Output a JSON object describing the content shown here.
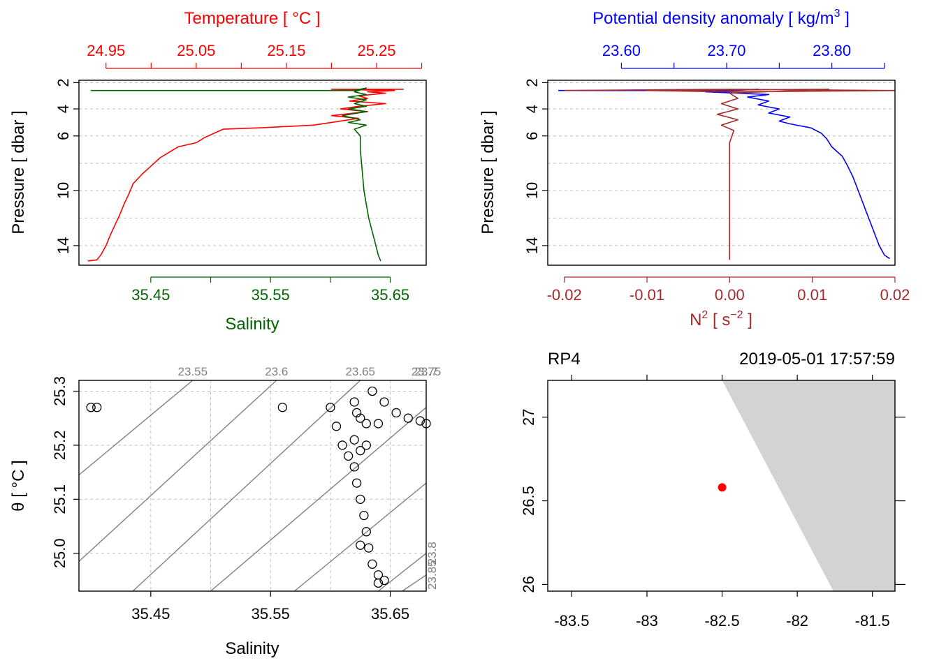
{
  "colors": {
    "temperature": "#ff0000",
    "salinity": "#006400",
    "density": "#0000ff",
    "n2": "#a52a2a",
    "axis": "#000000",
    "grid": "#bfbfbf",
    "isopycnal": "#808080",
    "land": "#d3d3d3",
    "station": "#ff0000"
  },
  "chart_data": [
    {
      "id": "ts-profile",
      "type": "line",
      "title": "",
      "top_axis": {
        "label": "Temperature [ °C ]",
        "range": [
          24.92,
          25.305
        ],
        "ticks": [
          24.95,
          25.0,
          25.05,
          25.1,
          25.15,
          25.2,
          25.25,
          25.3
        ],
        "tick_labels": [
          "24.95",
          "",
          "25.05",
          "",
          "25.15",
          "",
          "25.25",
          ""
        ]
      },
      "bottom_axis": {
        "label": "Salinity",
        "range": [
          35.39,
          35.68
        ],
        "ticks": [
          35.45,
          35.5,
          35.55,
          35.6,
          35.65
        ],
        "tick_labels": [
          "35.45",
          "",
          "35.55",
          "",
          "35.65"
        ]
      },
      "ylabel": "Pressure [ dbar ]",
      "ylim": [
        2,
        15.5
      ],
      "y_reversed": true,
      "y_ticks": [
        2,
        4,
        6,
        10,
        14
      ],
      "y_grid": [
        2,
        4,
        6,
        8,
        10,
        12,
        14
      ],
      "series": [
        {
          "name": "Temperature",
          "axis": "top",
          "points": [
            [
              25.28,
              2.5
            ],
            [
              25.2,
              2.5
            ],
            [
              25.27,
              2.6
            ],
            [
              25.24,
              2.7
            ],
            [
              25.26,
              2.8
            ],
            [
              25.23,
              3.0
            ],
            [
              25.24,
              3.2
            ],
            [
              25.22,
              3.4
            ],
            [
              25.26,
              3.6
            ],
            [
              25.23,
              3.8
            ],
            [
              25.21,
              4.0
            ],
            [
              25.24,
              4.2
            ],
            [
              25.2,
              4.5
            ],
            [
              25.23,
              4.7
            ],
            [
              25.2,
              5.0
            ],
            [
              25.18,
              5.2
            ],
            [
              25.12,
              5.4
            ],
            [
              25.08,
              5.5
            ],
            [
              25.07,
              5.8
            ],
            [
              25.06,
              6.1
            ],
            [
              25.05,
              6.5
            ],
            [
              25.03,
              6.8
            ],
            [
              25.02,
              7.2
            ],
            [
              25.01,
              7.6
            ],
            [
              25.0,
              8.2
            ],
            [
              24.99,
              8.8
            ],
            [
              24.98,
              9.5
            ],
            [
              24.975,
              10.3
            ],
            [
              24.97,
              11.0
            ],
            [
              24.965,
              11.8
            ],
            [
              24.96,
              12.5
            ],
            [
              24.955,
              13.2
            ],
            [
              24.95,
              14.0
            ],
            [
              24.945,
              14.7
            ],
            [
              24.94,
              15.2
            ],
            [
              24.93,
              15.3
            ]
          ]
        },
        {
          "name": "Salinity",
          "axis": "bottom",
          "points": [
            [
              35.4,
              2.6
            ],
            [
              35.62,
              2.6
            ],
            [
              35.63,
              2.4
            ],
            [
              35.62,
              2.7
            ],
            [
              35.63,
              2.9
            ],
            [
              35.615,
              3.1
            ],
            [
              35.63,
              3.3
            ],
            [
              35.62,
              3.6
            ],
            [
              35.63,
              3.8
            ],
            [
              35.615,
              4.0
            ],
            [
              35.63,
              4.2
            ],
            [
              35.61,
              4.5
            ],
            [
              35.625,
              4.8
            ],
            [
              35.615,
              5.0
            ],
            [
              35.63,
              5.2
            ],
            [
              35.62,
              5.5
            ],
            [
              35.625,
              6.0
            ],
            [
              35.625,
              7.0
            ],
            [
              35.626,
              8.0
            ],
            [
              35.627,
              9.0
            ],
            [
              35.628,
              10.0
            ],
            [
              35.63,
              11.0
            ],
            [
              35.632,
              12.0
            ],
            [
              35.635,
              13.0
            ],
            [
              35.638,
              14.0
            ],
            [
              35.64,
              14.8
            ],
            [
              35.642,
              15.3
            ]
          ]
        }
      ]
    },
    {
      "id": "density-profile",
      "type": "line",
      "title": "",
      "top_axis": {
        "label": "Potential density anomaly [ kg/m",
        "label_sup": "3",
        "label_tail": " ]",
        "range": [
          23.53,
          23.86
        ],
        "ticks": [
          23.6,
          23.65,
          23.7,
          23.75,
          23.8,
          23.85
        ],
        "tick_labels": [
          "23.60",
          "",
          "23.70",
          "",
          "23.80",
          ""
        ]
      },
      "bottom_axis": {
        "label": "N",
        "label_sup": "2",
        "label_tail": " [ s",
        "label_sup2": "−2",
        "label_tail2": " ]",
        "range": [
          -0.022,
          0.02
        ],
        "ticks": [
          -0.02,
          -0.01,
          0.0,
          0.01,
          0.02
        ],
        "tick_labels": [
          "-0.02",
          "-0.01",
          "0.00",
          "0.01",
          "0.02"
        ]
      },
      "ylabel": "Pressure [ dbar ]",
      "ylim": [
        2,
        15.5
      ],
      "y_reversed": true,
      "y_ticks": [
        2,
        4,
        6,
        10,
        14
      ],
      "y_grid": [
        2,
        4,
        6,
        8,
        10,
        12,
        14
      ],
      "series": [
        {
          "name": "Potential density anomaly",
          "axis": "top",
          "points": [
            [
              23.54,
              2.6
            ],
            [
              23.7,
              2.6
            ],
            [
              23.73,
              2.5
            ],
            [
              23.68,
              2.7
            ],
            [
              23.74,
              2.9
            ],
            [
              23.72,
              3.1
            ],
            [
              23.74,
              3.4
            ],
            [
              23.73,
              3.7
            ],
            [
              23.75,
              4.0
            ],
            [
              23.74,
              4.3
            ],
            [
              23.76,
              4.6
            ],
            [
              23.75,
              4.9
            ],
            [
              23.76,
              5.1
            ],
            [
              23.78,
              5.4
            ],
            [
              23.79,
              5.8
            ],
            [
              23.795,
              6.2
            ],
            [
              23.8,
              6.8
            ],
            [
              23.81,
              7.5
            ],
            [
              23.815,
              8.2
            ],
            [
              23.82,
              9.0
            ],
            [
              23.825,
              10.0
            ],
            [
              23.83,
              11.0
            ],
            [
              23.835,
              12.0
            ],
            [
              23.84,
              13.0
            ],
            [
              23.845,
              14.0
            ],
            [
              23.85,
              14.8
            ],
            [
              23.855,
              15.1
            ]
          ]
        },
        {
          "name": "N2",
          "axis": "bottom",
          "points": [
            [
              -0.02,
              2.6
            ],
            [
              0.0,
              2.5
            ],
            [
              0.02,
              2.6
            ],
            [
              0.0,
              2.7
            ],
            [
              -0.01,
              2.6
            ],
            [
              0.012,
              2.5
            ],
            [
              0.0,
              2.8
            ],
            [
              0.001,
              3.2
            ],
            [
              -0.001,
              3.6
            ],
            [
              0.001,
              4.0
            ],
            [
              -0.0015,
              4.4
            ],
            [
              0.001,
              4.8
            ],
            [
              -0.001,
              5.2
            ],
            [
              0.0005,
              5.6
            ],
            [
              0.0,
              6.5
            ],
            [
              0.0,
              8.0
            ],
            [
              0.0,
              10.0
            ],
            [
              0.0,
              12.0
            ],
            [
              0.0,
              14.0
            ],
            [
              0.0,
              15.2
            ]
          ]
        }
      ]
    },
    {
      "id": "ts-diagram",
      "type": "scatter",
      "title": "",
      "xlabel": "Salinity",
      "ylabel": "θ [ °C ]",
      "xlim": [
        35.39,
        35.68
      ],
      "ylim": [
        24.93,
        25.32
      ],
      "x_ticks": [
        35.45,
        35.55,
        35.65
      ],
      "x_tick_labels": [
        "35.45",
        "35.55",
        "35.65"
      ],
      "x_grid": [
        35.45,
        35.5,
        35.55,
        35.6,
        35.65
      ],
      "y_ticks": [
        25.0,
        25.1,
        25.2,
        25.3
      ],
      "y_tick_labels": [
        "25.0",
        "25.1",
        "25.2",
        "25.3"
      ],
      "y_grid": [
        25.0,
        25.1,
        25.2,
        25.3
      ],
      "isopycnals": [
        {
          "label": "23.55",
          "position": "top",
          "line": [
            [
              35.39,
              25.145
            ],
            [
              35.485,
              25.32
            ]
          ]
        },
        {
          "label": "23.6",
          "position": "top",
          "line": [
            [
              35.39,
              24.985
            ],
            [
              35.555,
              25.32
            ]
          ]
        },
        {
          "label": "23.65",
          "position": "top",
          "line": [
            [
              35.435,
              24.93
            ],
            [
              35.625,
              25.32
            ]
          ]
        },
        {
          "label": "23.7",
          "position": "top",
          "line": [
            [
              35.5,
              24.93
            ],
            [
              35.68,
              25.27
            ]
          ]
        },
        {
          "label": "23.75",
          "position": "top",
          "line": [
            [
              35.57,
              24.93
            ],
            [
              35.68,
              25.13
            ]
          ]
        },
        {
          "label": "23.8",
          "position": "right",
          "line": [
            [
              35.64,
              24.93
            ],
            [
              35.68,
              25.0
            ]
          ]
        },
        {
          "label": "23.85",
          "position": "right",
          "line": [
            [
              35.66,
              24.93
            ],
            [
              35.68,
              24.96
            ]
          ]
        }
      ],
      "points": [
        [
          35.4,
          25.27
        ],
        [
          35.405,
          25.27
        ],
        [
          35.56,
          25.27
        ],
        [
          35.6,
          25.27
        ],
        [
          35.605,
          25.235
        ],
        [
          35.61,
          25.2
        ],
        [
          35.615,
          25.18
        ],
        [
          35.62,
          25.21
        ],
        [
          35.625,
          25.19
        ],
        [
          35.63,
          25.2
        ],
        [
          35.62,
          25.16
        ],
        [
          35.622,
          25.13
        ],
        [
          35.625,
          25.1
        ],
        [
          35.628,
          25.07
        ],
        [
          35.63,
          25.04
        ],
        [
          35.632,
          25.01
        ],
        [
          35.635,
          24.98
        ],
        [
          35.64,
          24.96
        ],
        [
          35.645,
          24.95
        ],
        [
          35.64,
          24.945
        ],
        [
          35.625,
          25.015
        ],
        [
          35.62,
          25.28
        ],
        [
          35.622,
          25.26
        ],
        [
          35.625,
          25.25
        ],
        [
          35.63,
          25.24
        ],
        [
          35.64,
          25.24
        ],
        [
          35.635,
          25.3
        ],
        [
          35.645,
          25.28
        ],
        [
          35.655,
          25.26
        ],
        [
          35.665,
          25.25
        ],
        [
          35.675,
          25.245
        ],
        [
          35.68,
          25.24
        ]
      ]
    },
    {
      "id": "station-map",
      "type": "scatter",
      "title": "",
      "station": "RP4",
      "datetime": "2019-05-01 17:57:59",
      "xlim": [
        -83.66,
        -81.35
      ],
      "ylim": [
        25.96,
        27.22
      ],
      "x_ticks": [
        -83.5,
        -83,
        -82.5,
        -82,
        -81.5
      ],
      "x_tick_labels": [
        "-83.5",
        "-83",
        "-82.5",
        "-82",
        "-81.5"
      ],
      "y_ticks": [
        26,
        26.5,
        27
      ],
      "y_tick_labels": [
        "26",
        "26.5",
        "27"
      ],
      "land": [
        [
          -82.5,
          27.22
        ],
        [
          -81.35,
          27.22
        ],
        [
          -81.35,
          25.96
        ],
        [
          -81.76,
          25.96
        ]
      ],
      "points": [
        [
          -82.5,
          26.58
        ]
      ]
    }
  ]
}
